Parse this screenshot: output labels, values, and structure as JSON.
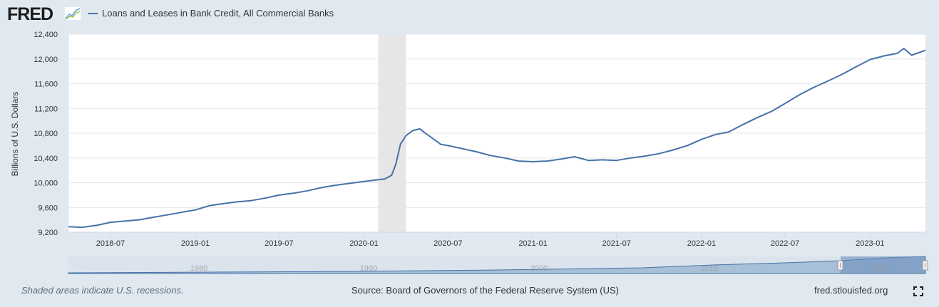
{
  "header": {
    "logo_text": "FRED",
    "series_title": "Loans and Leases in Bank Credit, All Commercial Banks"
  },
  "footer": {
    "recession_note": "Shaded areas indicate U.S. recessions.",
    "source": "Source: Board of Governors of the Federal Reserve System (US)",
    "link": "fred.stlouisfed.org"
  },
  "colors": {
    "line": "#4572a7",
    "recession": "#e6e6e6",
    "grid": "#e6e6e6",
    "page_bg": "#e1e9f0"
  },
  "icons": {
    "logo": "fred-graph-logo-icon",
    "fullscreen": "fullscreen-icon"
  },
  "chart_data": {
    "type": "line",
    "title": "",
    "xlabel": "",
    "ylabel": "Billions of U.S. Dollars",
    "ylim": [
      9200,
      12400
    ],
    "xlim": [
      "2018-04-01",
      "2023-05-01"
    ],
    "yticks": [
      9200,
      9600,
      10000,
      10400,
      10800,
      11200,
      11600,
      12000,
      12400
    ],
    "ytick_labels": [
      "9,200",
      "9,600",
      "10,000",
      "10,400",
      "10,800",
      "11,200",
      "11,600",
      "12,000",
      "12,400"
    ],
    "xticks": [
      "2018-07-01",
      "2019-01-01",
      "2019-07-01",
      "2020-01-01",
      "2020-07-01",
      "2021-01-01",
      "2021-07-01",
      "2022-01-01",
      "2022-07-01",
      "2023-01-01"
    ],
    "xtick_labels": [
      "2018-07",
      "2019-01",
      "2019-07",
      "2020-01",
      "2020-07",
      "2021-01",
      "2021-07",
      "2022-01",
      "2022-07",
      "2023-01"
    ],
    "grid": true,
    "recessions": [
      {
        "start": "2020-02-01",
        "end": "2020-04-01"
      }
    ],
    "series": [
      {
        "name": "Loans and Leases in Bank Credit, All Commercial Banks",
        "x": [
          "2018-04-01",
          "2018-05-01",
          "2018-06-01",
          "2018-07-01",
          "2018-08-01",
          "2018-09-01",
          "2018-10-01",
          "2018-11-01",
          "2018-12-01",
          "2019-01-01",
          "2019-02-01",
          "2019-03-01",
          "2019-04-01",
          "2019-05-01",
          "2019-06-01",
          "2019-07-01",
          "2019-08-01",
          "2019-09-01",
          "2019-10-01",
          "2019-11-01",
          "2019-12-01",
          "2020-01-01",
          "2020-02-01",
          "2020-02-15",
          "2020-03-01",
          "2020-03-10",
          "2020-03-20",
          "2020-04-01",
          "2020-04-15",
          "2020-05-01",
          "2020-05-15",
          "2020-06-01",
          "2020-06-15",
          "2020-07-01",
          "2020-08-01",
          "2020-09-01",
          "2020-10-01",
          "2020-11-01",
          "2020-12-01",
          "2021-01-01",
          "2021-02-01",
          "2021-03-01",
          "2021-04-01",
          "2021-05-01",
          "2021-06-01",
          "2021-07-01",
          "2021-08-01",
          "2021-09-01",
          "2021-10-01",
          "2021-11-01",
          "2021-12-01",
          "2022-01-01",
          "2022-02-01",
          "2022-03-01",
          "2022-04-01",
          "2022-05-01",
          "2022-06-01",
          "2022-07-01",
          "2022-08-01",
          "2022-09-01",
          "2022-10-01",
          "2022-11-01",
          "2022-12-01",
          "2023-01-01",
          "2023-02-01",
          "2023-03-01",
          "2023-03-15",
          "2023-04-01",
          "2023-05-01"
        ],
        "values": [
          9290,
          9280,
          9310,
          9360,
          9380,
          9400,
          9440,
          9480,
          9520,
          9560,
          9630,
          9660,
          9690,
          9710,
          9750,
          9800,
          9830,
          9870,
          9920,
          9960,
          9990,
          10020,
          10050,
          10060,
          10120,
          10300,
          10620,
          10760,
          10840,
          10870,
          10790,
          10700,
          10620,
          10600,
          10550,
          10500,
          10440,
          10400,
          10350,
          10340,
          10350,
          10380,
          10420,
          10360,
          10370,
          10360,
          10400,
          10430,
          10470,
          10530,
          10600,
          10700,
          10780,
          10820,
          10940,
          11050,
          11150,
          11280,
          11420,
          11540,
          11640,
          11750,
          11870,
          11990,
          12050,
          12090,
          12170,
          12060,
          12140
        ]
      }
    ]
  }
}
